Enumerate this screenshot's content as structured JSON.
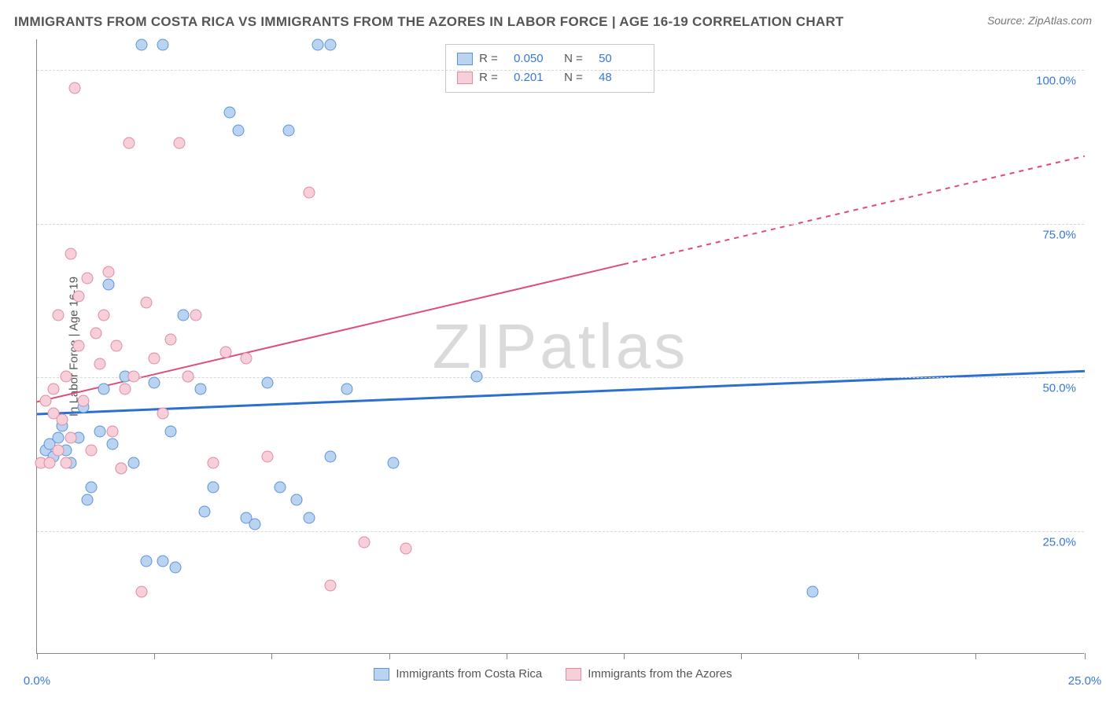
{
  "header": {
    "title": "IMMIGRANTS FROM COSTA RICA VS IMMIGRANTS FROM THE AZORES IN LABOR FORCE | AGE 16-19 CORRELATION CHART",
    "source": "Source: ZipAtlas.com"
  },
  "watermark": "ZIPatlas",
  "chart": {
    "type": "scatter",
    "ylabel": "In Labor Force | Age 16-19",
    "xlim": [
      0,
      25
    ],
    "ylim": [
      5,
      105
    ],
    "x_ticks": [
      0,
      2.8,
      5.6,
      8.4,
      11.2,
      14.0,
      16.8,
      19.6,
      22.4,
      25.0
    ],
    "x_tick_labels": {
      "0": "0.0%",
      "25": "25.0%"
    },
    "y_grid": [
      25,
      50,
      75,
      100
    ],
    "y_tick_labels": {
      "25": "25.0%",
      "50": "50.0%",
      "75": "75.0%",
      "100": "100.0%"
    },
    "background_color": "#ffffff",
    "grid_color": "#d8d8d8",
    "axis_color": "#888888",
    "tick_label_color": "#3878d8",
    "ylabel_color": "#555555",
    "ylabel_fontsize": 15,
    "point_radius": 7.5,
    "series": [
      {
        "name": "Immigrants from Costa Rica",
        "fill_color": "#b9d3f0",
        "stroke_color": "#5a94d9",
        "line_color": "#2d6fd0",
        "line_width": 3,
        "R": "0.050",
        "N": "50",
        "regression": {
          "x1": 0,
          "y1": 44,
          "x2": 25,
          "y2": 51,
          "dashed_from_x": null
        },
        "points": [
          [
            0.2,
            38
          ],
          [
            0.3,
            39
          ],
          [
            0.4,
            37
          ],
          [
            0.5,
            40
          ],
          [
            0.6,
            42
          ],
          [
            0.7,
            38
          ],
          [
            0.8,
            36
          ],
          [
            1.0,
            40
          ],
          [
            1.1,
            45
          ],
          [
            1.2,
            30
          ],
          [
            1.3,
            32
          ],
          [
            1.5,
            41
          ],
          [
            1.6,
            48
          ],
          [
            1.7,
            65
          ],
          [
            1.8,
            39
          ],
          [
            2.0,
            35
          ],
          [
            2.1,
            50
          ],
          [
            2.3,
            36
          ],
          [
            2.5,
            104
          ],
          [
            2.6,
            20
          ],
          [
            2.8,
            49
          ],
          [
            3.0,
            104
          ],
          [
            3.0,
            20
          ],
          [
            3.2,
            41
          ],
          [
            3.3,
            19
          ],
          [
            3.5,
            60
          ],
          [
            3.6,
            50
          ],
          [
            3.9,
            48
          ],
          [
            4.0,
            28
          ],
          [
            4.2,
            32
          ],
          [
            4.6,
            93
          ],
          [
            4.8,
            90
          ],
          [
            5.0,
            27
          ],
          [
            5.2,
            26
          ],
          [
            5.5,
            49
          ],
          [
            5.8,
            32
          ],
          [
            6.0,
            90
          ],
          [
            6.2,
            30
          ],
          [
            6.5,
            27
          ],
          [
            6.7,
            104
          ],
          [
            7.0,
            104
          ],
          [
            7.0,
            37
          ],
          [
            7.4,
            48
          ],
          [
            8.5,
            36
          ],
          [
            10.5,
            50
          ],
          [
            18.5,
            15
          ]
        ]
      },
      {
        "name": "Immigrants from the Azores",
        "fill_color": "#f6cfd9",
        "stroke_color": "#e08aa3",
        "line_color": "#e04c7a",
        "line_width": 2,
        "R": "0.201",
        "N": "48",
        "regression": {
          "x1": 0,
          "y1": 46,
          "x2": 25,
          "y2": 86,
          "dashed_from_x": 14
        },
        "points": [
          [
            0.1,
            36
          ],
          [
            0.2,
            46
          ],
          [
            0.3,
            36
          ],
          [
            0.4,
            44
          ],
          [
            0.4,
            48
          ],
          [
            0.5,
            38
          ],
          [
            0.5,
            60
          ],
          [
            0.6,
            43
          ],
          [
            0.7,
            36
          ],
          [
            0.7,
            50
          ],
          [
            0.8,
            40
          ],
          [
            0.8,
            70
          ],
          [
            0.9,
            97
          ],
          [
            1.0,
            55
          ],
          [
            1.0,
            63
          ],
          [
            1.1,
            46
          ],
          [
            1.2,
            66
          ],
          [
            1.3,
            38
          ],
          [
            1.4,
            57
          ],
          [
            1.5,
            52
          ],
          [
            1.6,
            60
          ],
          [
            1.7,
            67
          ],
          [
            1.8,
            41
          ],
          [
            1.9,
            55
          ],
          [
            2.0,
            35
          ],
          [
            2.1,
            48
          ],
          [
            2.2,
            88
          ],
          [
            2.3,
            50
          ],
          [
            2.5,
            15
          ],
          [
            2.6,
            62
          ],
          [
            2.8,
            53
          ],
          [
            3.0,
            44
          ],
          [
            3.2,
            56
          ],
          [
            3.4,
            88
          ],
          [
            3.6,
            50
          ],
          [
            3.8,
            60
          ],
          [
            4.2,
            36
          ],
          [
            4.5,
            54
          ],
          [
            5.0,
            53
          ],
          [
            5.5,
            37
          ],
          [
            6.5,
            80
          ],
          [
            7.0,
            16
          ],
          [
            7.8,
            23
          ],
          [
            8.8,
            22
          ]
        ]
      }
    ]
  },
  "legend_box": {
    "rows": [
      {
        "swatch_series": 0,
        "r_label": "R =",
        "n_label": "N ="
      },
      {
        "swatch_series": 1,
        "r_label": "R =",
        "n_label": "N ="
      }
    ]
  }
}
